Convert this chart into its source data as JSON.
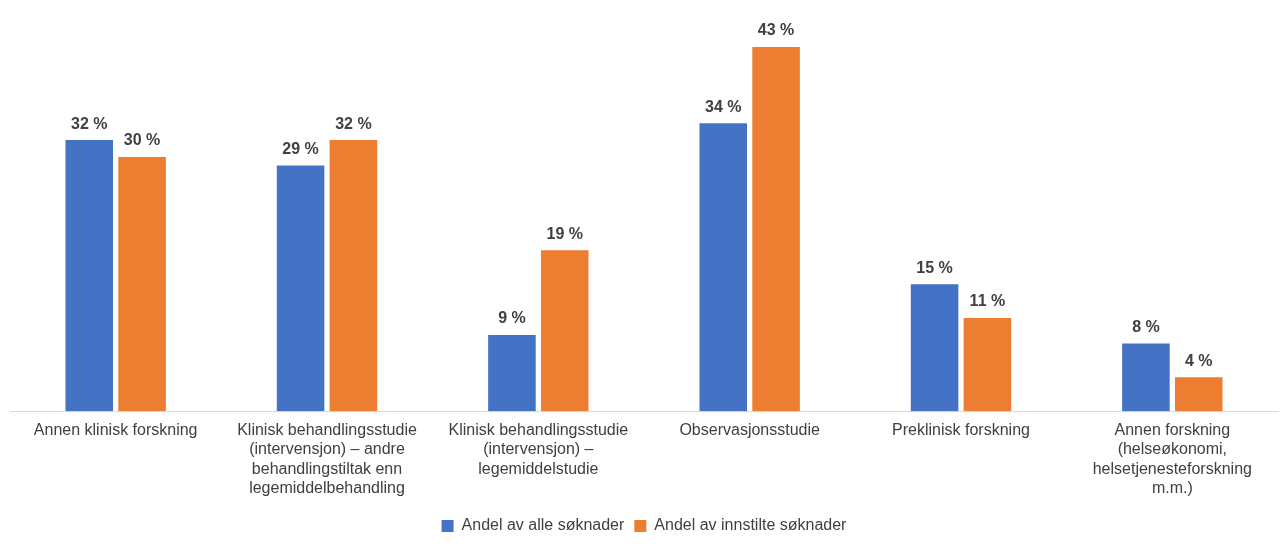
{
  "chart_data": {
    "type": "bar",
    "categories": [
      "Annen klinisk forskning",
      "Klinisk behandlingsstudie (intervensjon) – andre behandlingstiltak enn legemiddelbehandling",
      "Klinisk behandlingsstudie (intervensjon) – legemiddelstudie",
      "Observasjonsstudie",
      "Preklinisk forskning",
      "Annen forskning (helseøkonomi, helsetjenesteforskning m.m.)"
    ],
    "series": [
      {
        "name": "Andel av alle søknader",
        "color": "#4472c4",
        "values": [
          32,
          29,
          9,
          34,
          15,
          8
        ],
        "value_labels": [
          "32 %",
          "29 %",
          "9 %",
          "34 %",
          "15 %",
          "8 %"
        ]
      },
      {
        "name": "Andel av innstilte søknader",
        "color": "#ed7d31",
        "values": [
          30,
          32,
          19,
          43,
          11,
          4
        ],
        "value_labels": [
          "30 %",
          "32 %",
          "19 %",
          "43 %",
          "11 %",
          "4 %"
        ]
      }
    ],
    "grid": false,
    "legend": "bottom"
  }
}
